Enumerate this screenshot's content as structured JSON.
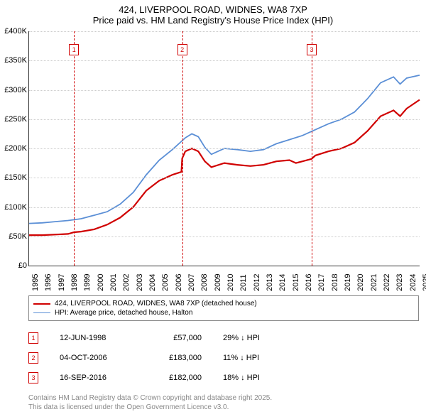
{
  "title": "424, LIVERPOOL ROAD, WIDNES, WA8 7XP",
  "subtitle": "Price paid vs. HM Land Registry's House Price Index (HPI)",
  "chart": {
    "type": "line",
    "background_color": "#ffffff",
    "grid_color": "#cccccc",
    "axis_color": "#333333",
    "x_start_year": 1995,
    "x_end_year": 2025,
    "x_ticks": [
      1995,
      1996,
      1997,
      1998,
      1999,
      2000,
      2001,
      2002,
      2003,
      2004,
      2005,
      2006,
      2007,
      2008,
      2009,
      2010,
      2011,
      2012,
      2013,
      2014,
      2015,
      2016,
      2017,
      2018,
      2019,
      2020,
      2021,
      2022,
      2023,
      2024,
      2025
    ],
    "y_min": 0,
    "y_max": 400000,
    "y_ticks": [
      0,
      50000,
      100000,
      150000,
      200000,
      250000,
      300000,
      350000,
      400000
    ],
    "y_tick_labels": [
      "£0",
      "£50K",
      "£100K",
      "£150K",
      "£200K",
      "£250K",
      "£300K",
      "£350K",
      "£400K"
    ],
    "series": [
      {
        "name": "424, LIVERPOOL ROAD, WIDNES, WA8 7XP (detached house)",
        "color": "#d00000",
        "line_width": 2.2,
        "values_by_year": {
          "1995": 52000,
          "1996": 52000,
          "1997": 53000,
          "1998": 54000,
          "1998.45": 57000,
          "1999": 58000,
          "2000": 62000,
          "2001": 70000,
          "2002": 82000,
          "2003": 100000,
          "2004": 128000,
          "2005": 145000,
          "2006": 155000,
          "2006.7": 160000,
          "2006.76": 183000,
          "2007": 195000,
          "2007.5": 200000,
          "2008": 195000,
          "2008.5": 178000,
          "2009": 168000,
          "2010": 175000,
          "2011": 172000,
          "2012": 170000,
          "2013": 172000,
          "2014": 178000,
          "2015": 180000,
          "2015.5": 175000,
          "2016": 178000,
          "2016.7": 182000,
          "2017": 188000,
          "2018": 195000,
          "2019": 200000,
          "2020": 210000,
          "2021": 230000,
          "2022": 255000,
          "2023": 265000,
          "2023.5": 255000,
          "2024": 268000,
          "2025": 283000
        }
      },
      {
        "name": "HPI: Average price, detached house, Halton",
        "color": "#5b8fd6",
        "line_width": 1.8,
        "values_by_year": {
          "1995": 72000,
          "1996": 73000,
          "1997": 75000,
          "1998": 77000,
          "1999": 80000,
          "2000": 86000,
          "2001": 92000,
          "2002": 105000,
          "2003": 125000,
          "2004": 155000,
          "2005": 180000,
          "2006": 198000,
          "2007": 218000,
          "2007.5": 225000,
          "2008": 220000,
          "2008.5": 202000,
          "2009": 190000,
          "2010": 200000,
          "2011": 198000,
          "2012": 195000,
          "2013": 198000,
          "2014": 208000,
          "2015": 215000,
          "2016": 222000,
          "2017": 232000,
          "2018": 242000,
          "2019": 250000,
          "2020": 262000,
          "2021": 285000,
          "2022": 312000,
          "2023": 322000,
          "2023.5": 310000,
          "2024": 320000,
          "2025": 325000
        }
      }
    ],
    "markers": [
      {
        "n": "1",
        "year_frac": 1998.45,
        "color": "#d00000"
      },
      {
        "n": "2",
        "year_frac": 2006.76,
        "color": "#d00000"
      },
      {
        "n": "3",
        "year_frac": 2016.71,
        "color": "#d00000"
      }
    ]
  },
  "legend": [
    {
      "color": "#d00000",
      "width": 2.2,
      "label": "424, LIVERPOOL ROAD, WIDNES, WA8 7XP (detached house)"
    },
    {
      "color": "#5b8fd6",
      "width": 1.8,
      "label": "HPI: Average price, detached house, Halton"
    }
  ],
  "sales": [
    {
      "n": "1",
      "color": "#d00000",
      "date": "12-JUN-1998",
      "price": "£57,000",
      "diff": "29% ↓ HPI"
    },
    {
      "n": "2",
      "color": "#d00000",
      "date": "04-OCT-2006",
      "price": "£183,000",
      "diff": "11% ↓ HPI"
    },
    {
      "n": "3",
      "color": "#d00000",
      "date": "16-SEP-2016",
      "price": "£182,000",
      "diff": "18% ↓ HPI"
    }
  ],
  "attribution_line1": "Contains HM Land Registry data © Crown copyright and database right 2025.",
  "attribution_line2": "This data is licensed under the Open Government Licence v3.0."
}
